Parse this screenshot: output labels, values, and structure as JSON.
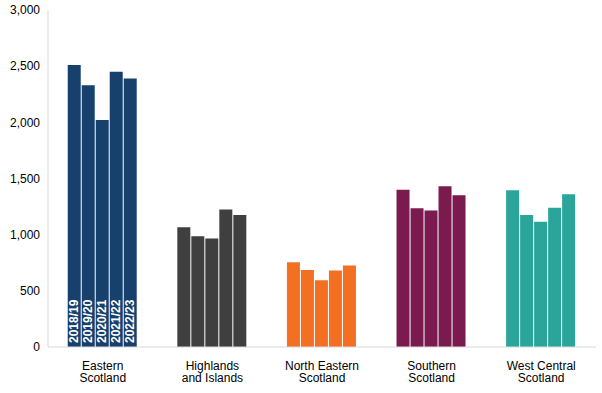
{
  "chart_data": {
    "type": "bar",
    "categories": [
      "Eastern Scotland",
      "Highlands and Islands",
      "North Eastern Scotland",
      "Southern Scotland",
      "West Central Scotland"
    ],
    "series": [
      {
        "name": "2018/19",
        "values": [
          2510,
          1065,
          755,
          1400,
          1395
        ]
      },
      {
        "name": "2019/20",
        "values": [
          2330,
          985,
          685,
          1235,
          1175
        ]
      },
      {
        "name": "2020/21",
        "values": [
          2020,
          965,
          595,
          1215,
          1115
        ]
      },
      {
        "name": "2021/22",
        "values": [
          2450,
          1225,
          680,
          1430,
          1240
        ]
      },
      {
        "name": "2022/23",
        "values": [
          2390,
          1175,
          725,
          1350,
          1360
        ]
      }
    ],
    "colors": [
      "#17406d",
      "#3f3f3f",
      "#f36f21",
      "#7b1a4e",
      "#2ba59a"
    ],
    "ylim": [
      0,
      3000
    ],
    "yticks": [
      0,
      500,
      {
        "value": 1000,
        "label": "1,000"
      },
      {
        "value": 1500,
        "label": "1,500"
      },
      {
        "value": 2000,
        "label": "2,000"
      },
      {
        "value": 2500,
        "label": "2,500"
      },
      {
        "value": 3000,
        "label": "3,000"
      }
    ],
    "grid": false,
    "legend": "none"
  }
}
